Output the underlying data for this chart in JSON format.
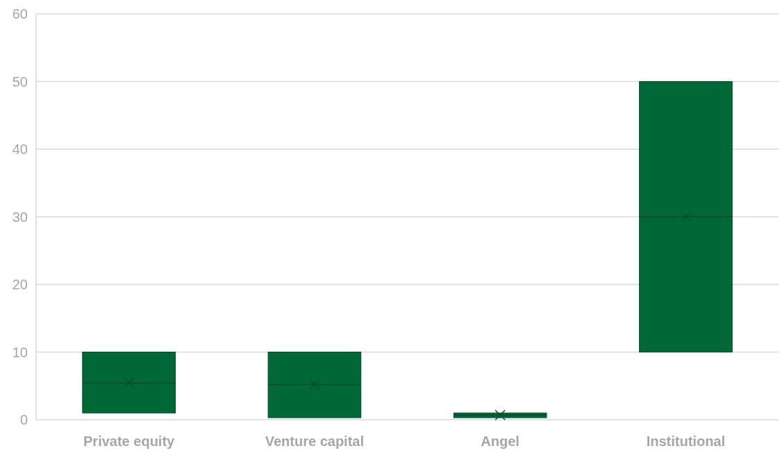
{
  "chart_data": {
    "type": "box",
    "categories": [
      "Private equity",
      "Venture capital",
      "Angel",
      "Institutional"
    ],
    "series": [
      {
        "color": "#006837",
        "boxes": [
          {
            "low": 1,
            "q1": 1,
            "median": 5.4,
            "q3": 10,
            "high": 10,
            "mean": 5.5
          },
          {
            "low": 0.3,
            "q1": 0.3,
            "median": 5.2,
            "q3": 10,
            "high": 10,
            "mean": 5.2
          },
          {
            "low": 0.3,
            "q1": 0.3,
            "median": 0.7,
            "q3": 1,
            "high": 1,
            "mean": 0.7
          },
          {
            "low": 10,
            "q1": 10,
            "median": 30,
            "q3": 50,
            "high": 50,
            "mean": 30
          }
        ]
      }
    ],
    "ylim": [
      0,
      60
    ],
    "yticks": [
      0,
      10,
      20,
      30,
      40,
      50,
      60
    ],
    "grid": "y",
    "marker": "cross"
  }
}
